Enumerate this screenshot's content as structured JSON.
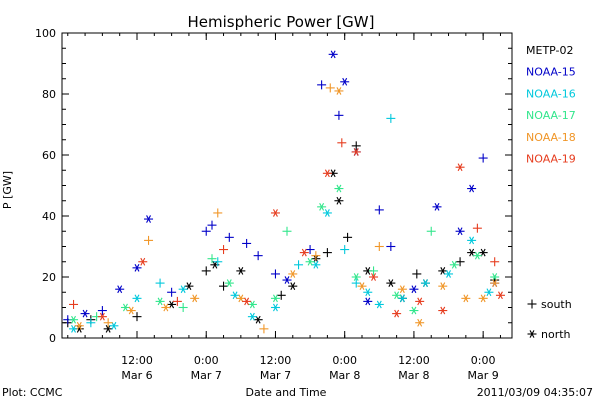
{
  "chart_data": {
    "type": "scatter",
    "title": "Hemispheric Power [GW]",
    "ylabel": "P [GW]",
    "xlabel": "Date and Time",
    "ylim": [
      0,
      100
    ],
    "yticks": [
      0,
      20,
      40,
      60,
      80,
      100
    ],
    "xlim": [
      "2011-03-05 23:00",
      "2011-03-09 05:00"
    ],
    "xticks": [
      {
        "time": "2011-03-06 12:00",
        "label": "12:00",
        "date": "Mar 6"
      },
      {
        "time": "2011-03-07 00:00",
        "label": "0:00",
        "date": "Mar 7"
      },
      {
        "time": "2011-03-07 12:00",
        "label": "12:00",
        "date": "Mar 7"
      },
      {
        "time": "2011-03-08 00:00",
        "label": "0:00",
        "date": "Mar 8"
      },
      {
        "time": "2011-03-08 12:00",
        "label": "12:00",
        "date": "Mar 8"
      },
      {
        "time": "2011-03-09 00:00",
        "label": "0:00",
        "date": "Mar 9"
      }
    ],
    "marker_legend": [
      {
        "symbol": "+",
        "label": "south"
      },
      {
        "symbol": "*",
        "label": "north"
      }
    ],
    "legend_position": "right",
    "series": [
      {
        "name": "METP-02",
        "color": "#000000",
        "points": [
          [
            "2011-03-06 00:00",
            5,
            "+"
          ],
          [
            "2011-03-06 02:00",
            3,
            "*"
          ],
          [
            "2011-03-06 04:00",
            6,
            "+"
          ],
          [
            "2011-03-06 07:00",
            3,
            "*"
          ],
          [
            "2011-03-06 12:00",
            7,
            "+"
          ],
          [
            "2011-03-06 18:00",
            11,
            "*"
          ],
          [
            "2011-03-06 21:00",
            17,
            "*"
          ],
          [
            "2011-03-07 00:00",
            22,
            "+"
          ],
          [
            "2011-03-07 01:30",
            24,
            "*"
          ],
          [
            "2011-03-07 03:00",
            17,
            "+"
          ],
          [
            "2011-03-07 06:00",
            22,
            "*"
          ],
          [
            "2011-03-07 09:00",
            6,
            "*"
          ],
          [
            "2011-03-07 13:00",
            14,
            "+"
          ],
          [
            "2011-03-07 15:00",
            17,
            "*"
          ],
          [
            "2011-03-07 19:00",
            26,
            "*"
          ],
          [
            "2011-03-07 21:00",
            28,
            "+"
          ],
          [
            "2011-03-07 22:00",
            54,
            "*"
          ],
          [
            "2011-03-07 23:00",
            45,
            "*"
          ],
          [
            "2011-03-08 00:30",
            33,
            "+"
          ],
          [
            "2011-03-08 02:00",
            63,
            "+"
          ],
          [
            "2011-03-08 04:00",
            22,
            "*"
          ],
          [
            "2011-03-08 08:00",
            18,
            "*"
          ],
          [
            "2011-03-08 10:00",
            13,
            "*"
          ],
          [
            "2011-03-08 12:30",
            21,
            "+"
          ],
          [
            "2011-03-08 14:00",
            18,
            "*"
          ],
          [
            "2011-03-08 17:00",
            22,
            "*"
          ],
          [
            "2011-03-08 20:00",
            25,
            "+"
          ],
          [
            "2011-03-08 22:00",
            28,
            "*"
          ],
          [
            "2011-03-09 00:00",
            28,
            "*"
          ],
          [
            "2011-03-09 02:00",
            19,
            "+"
          ]
        ]
      },
      {
        "name": "NOAA-15",
        "color": "#0000c8",
        "points": [
          [
            "2011-03-06 00:00",
            6,
            "+"
          ],
          [
            "2011-03-06 03:00",
            8,
            "*"
          ],
          [
            "2011-03-06 06:00",
            9,
            "+"
          ],
          [
            "2011-03-06 09:00",
            16,
            "*"
          ],
          [
            "2011-03-06 12:00",
            23,
            "*"
          ],
          [
            "2011-03-06 14:00",
            39,
            "*"
          ],
          [
            "2011-03-06 18:00",
            15,
            "+"
          ],
          [
            "2011-03-07 00:00",
            35,
            "+"
          ],
          [
            "2011-03-07 01:00",
            37,
            "+"
          ],
          [
            "2011-03-07 04:00",
            33,
            "+"
          ],
          [
            "2011-03-07 07:00",
            31,
            "+"
          ],
          [
            "2011-03-07 09:00",
            27,
            "+"
          ],
          [
            "2011-03-07 12:00",
            21,
            "+"
          ],
          [
            "2011-03-07 14:00",
            19,
            "*"
          ],
          [
            "2011-03-07 18:00",
            29,
            "+"
          ],
          [
            "2011-03-07 20:00",
            83,
            "+"
          ],
          [
            "2011-03-07 22:00",
            93,
            "*"
          ],
          [
            "2011-03-07 23:00",
            73,
            "+"
          ],
          [
            "2011-03-08 00:00",
            84,
            "*"
          ],
          [
            "2011-03-08 02:00",
            61,
            "*"
          ],
          [
            "2011-03-08 04:00",
            12,
            "*"
          ],
          [
            "2011-03-08 06:00",
            42,
            "+"
          ],
          [
            "2011-03-08 08:00",
            30,
            "+"
          ],
          [
            "2011-03-08 12:00",
            16,
            "*"
          ],
          [
            "2011-03-08 16:00",
            43,
            "*"
          ],
          [
            "2011-03-08 20:00",
            35,
            "*"
          ],
          [
            "2011-03-08 22:00",
            49,
            "*"
          ],
          [
            "2011-03-09 00:00",
            59,
            "+"
          ],
          [
            "2011-03-09 02:00",
            18,
            "*"
          ]
        ]
      },
      {
        "name": "NOAA-16",
        "color": "#00c8dc",
        "points": [
          [
            "2011-03-06 01:00",
            3,
            "*"
          ],
          [
            "2011-03-06 04:00",
            5,
            "+"
          ],
          [
            "2011-03-06 08:00",
            4,
            "*"
          ],
          [
            "2011-03-06 12:00",
            13,
            "*"
          ],
          [
            "2011-03-06 16:00",
            18,
            "+"
          ],
          [
            "2011-03-06 20:00",
            16,
            "*"
          ],
          [
            "2011-03-07 02:00",
            25,
            "+"
          ],
          [
            "2011-03-07 05:00",
            14,
            "*"
          ],
          [
            "2011-03-07 08:00",
            7,
            "*"
          ],
          [
            "2011-03-07 12:00",
            10,
            "*"
          ],
          [
            "2011-03-07 16:00",
            24,
            "+"
          ],
          [
            "2011-03-07 19:00",
            24,
            "*"
          ],
          [
            "2011-03-07 21:00",
            41,
            "*"
          ],
          [
            "2011-03-08 00:00",
            29,
            "+"
          ],
          [
            "2011-03-08 02:00",
            18,
            "+"
          ],
          [
            "2011-03-08 04:00",
            15,
            "*"
          ],
          [
            "2011-03-08 06:00",
            11,
            "*"
          ],
          [
            "2011-03-08 08:00",
            72,
            "+"
          ],
          [
            "2011-03-08 10:00",
            13,
            "*"
          ],
          [
            "2011-03-08 14:00",
            18,
            "*"
          ],
          [
            "2011-03-08 18:00",
            21,
            "*"
          ],
          [
            "2011-03-08 22:00",
            32,
            "*"
          ],
          [
            "2011-03-09 01:00",
            15,
            "*"
          ]
        ]
      },
      {
        "name": "NOAA-17",
        "color": "#32e68c",
        "points": [
          [
            "2011-03-06 01:00",
            6,
            "*"
          ],
          [
            "2011-03-06 05:00",
            7,
            "+"
          ],
          [
            "2011-03-06 10:00",
            10,
            "*"
          ],
          [
            "2011-03-06 16:00",
            12,
            "*"
          ],
          [
            "2011-03-06 20:00",
            10,
            "+"
          ],
          [
            "2011-03-07 01:00",
            26,
            "+"
          ],
          [
            "2011-03-07 04:00",
            18,
            "*"
          ],
          [
            "2011-03-07 08:00",
            11,
            "*"
          ],
          [
            "2011-03-07 12:00",
            13,
            "*"
          ],
          [
            "2011-03-07 14:00",
            35,
            "+"
          ],
          [
            "2011-03-07 18:00",
            25,
            "*"
          ],
          [
            "2011-03-07 20:00",
            43,
            "*"
          ],
          [
            "2011-03-07 23:00",
            49,
            "*"
          ],
          [
            "2011-03-08 02:00",
            20,
            "*"
          ],
          [
            "2011-03-08 05:00",
            22,
            "+"
          ],
          [
            "2011-03-08 09:00",
            14,
            "*"
          ],
          [
            "2011-03-08 12:00",
            9,
            "*"
          ],
          [
            "2011-03-08 15:00",
            35,
            "+"
          ],
          [
            "2011-03-08 19:00",
            24,
            "*"
          ],
          [
            "2011-03-08 23:00",
            27,
            "*"
          ],
          [
            "2011-03-09 02:00",
            20,
            "*"
          ]
        ]
      },
      {
        "name": "NOAA-18",
        "color": "#f09628",
        "points": [
          [
            "2011-03-06 02:00",
            4,
            "*"
          ],
          [
            "2011-03-06 07:00",
            5,
            "+"
          ],
          [
            "2011-03-06 11:00",
            9,
            "*"
          ],
          [
            "2011-03-06 14:00",
            32,
            "+"
          ],
          [
            "2011-03-06 17:00",
            10,
            "*"
          ],
          [
            "2011-03-06 22:00",
            13,
            "*"
          ],
          [
            "2011-03-07 02:00",
            41,
            "+"
          ],
          [
            "2011-03-07 06:00",
            13,
            "*"
          ],
          [
            "2011-03-07 10:00",
            3,
            "+"
          ],
          [
            "2011-03-07 15:00",
            21,
            "*"
          ],
          [
            "2011-03-07 19:00",
            27,
            "+"
          ],
          [
            "2011-03-07 21:30",
            82,
            "+"
          ],
          [
            "2011-03-07 23:00",
            81,
            "*"
          ],
          [
            "2011-03-08 03:00",
            17,
            "*"
          ],
          [
            "2011-03-08 06:00",
            30,
            "+"
          ],
          [
            "2011-03-08 10:00",
            16,
            "*"
          ],
          [
            "2011-03-08 13:00",
            5,
            "*"
          ],
          [
            "2011-03-08 17:00",
            17,
            "*"
          ],
          [
            "2011-03-08 21:00",
            13,
            "*"
          ],
          [
            "2011-03-09 00:00",
            13,
            "*"
          ],
          [
            "2011-03-09 02:00",
            18,
            "*"
          ]
        ]
      },
      {
        "name": "NOAA-19",
        "color": "#e63c1e",
        "points": [
          [
            "2011-03-06 01:00",
            11,
            "+"
          ],
          [
            "2011-03-06 06:00",
            7,
            "*"
          ],
          [
            "2011-03-06 13:00",
            25,
            "*"
          ],
          [
            "2011-03-06 19:00",
            12,
            "+"
          ],
          [
            "2011-03-07 03:00",
            29,
            "+"
          ],
          [
            "2011-03-07 07:00",
            12,
            "*"
          ],
          [
            "2011-03-07 12:00",
            41,
            "*"
          ],
          [
            "2011-03-07 17:00",
            28,
            "*"
          ],
          [
            "2011-03-07 21:00",
            54,
            "*"
          ],
          [
            "2011-03-07 23:30",
            64,
            "+"
          ],
          [
            "2011-03-08 02:00",
            61,
            "*"
          ],
          [
            "2011-03-08 05:00",
            20,
            "*"
          ],
          [
            "2011-03-08 09:00",
            8,
            "*"
          ],
          [
            "2011-03-08 13:00",
            12,
            "*"
          ],
          [
            "2011-03-08 17:00",
            9,
            "*"
          ],
          [
            "2011-03-08 20:00",
            56,
            "*"
          ],
          [
            "2011-03-08 23:00",
            36,
            "+"
          ],
          [
            "2011-03-09 02:00",
            25,
            "+"
          ],
          [
            "2011-03-09 03:00",
            14,
            "*"
          ]
        ]
      }
    ]
  },
  "footer": {
    "left": "Plot: CCMC",
    "timestamp": "2011/03/09 04:35:07"
  }
}
